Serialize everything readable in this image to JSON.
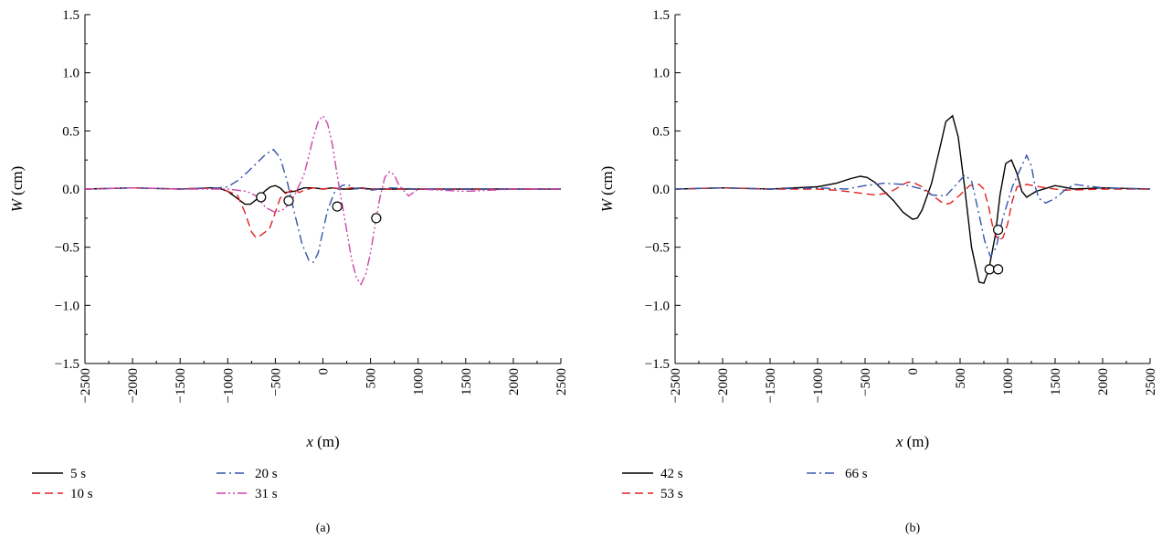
{
  "chart_data": [
    {
      "panel_label": "(a)",
      "type": "line",
      "xlabel_var": "x",
      "xlabel_unit": "(m)",
      "ylabel_var": "W",
      "ylabel_unit": "(cm)",
      "xlim": [
        -2500,
        2500
      ],
      "ylim": [
        -1.5,
        1.5
      ],
      "xticks": [
        -2500,
        -2000,
        -1500,
        -1000,
        -500,
        0,
        500,
        1000,
        1500,
        2000,
        2500
      ],
      "xtick_labels": [
        "−2500",
        "−2000",
        "−1500",
        "−1000",
        "−500",
        "0",
        "500",
        "1000",
        "1500",
        "2000",
        "2500"
      ],
      "yticks": [
        -1.5,
        -1.0,
        -0.5,
        0.0,
        0.5,
        1.0,
        1.5
      ],
      "ytick_labels": [
        "−1.5",
        "−1.0",
        "−0.5",
        "0.0",
        "0.5",
        "1.0",
        "1.5"
      ],
      "grid": false,
      "legend_position": "bottom",
      "series": [
        {
          "name": "5 s",
          "color": "#000000",
          "dash": "solid",
          "x": [
            -2500,
            -2000,
            -1500,
            -1200,
            -1100,
            -1000,
            -900,
            -820,
            -760,
            -700,
            -650,
            -600,
            -550,
            -500,
            -450,
            -400,
            -300,
            -200,
            -100,
            0,
            100,
            200,
            300,
            400,
            500,
            700,
            1000,
            1500,
            2000,
            2500
          ],
          "y": [
            0,
            0.01,
            0,
            0.01,
            0.01,
            -0.02,
            -0.08,
            -0.13,
            -0.13,
            -0.09,
            -0.05,
            -0.01,
            0.02,
            0.03,
            0.01,
            -0.03,
            -0.02,
            0.01,
            0.01,
            0,
            0.01,
            0,
            0,
            0.01,
            0,
            0,
            0,
            0,
            0,
            0
          ]
        },
        {
          "name": "10 s",
          "color": "#e02020",
          "dash": "dashed",
          "x": [
            -2500,
            -2000,
            -1500,
            -1100,
            -1000,
            -900,
            -820,
            -750,
            -700,
            -640,
            -560,
            -500,
            -450,
            -400,
            -350,
            -300,
            -250,
            -200,
            -100,
            0,
            100,
            200,
            300,
            500,
            1000,
            1500,
            2000,
            2500
          ],
          "y": [
            0,
            0.01,
            0,
            0.01,
            -0.02,
            -0.05,
            -0.2,
            -0.37,
            -0.42,
            -0.39,
            -0.34,
            -0.2,
            -0.08,
            -0.04,
            -0.02,
            0.0,
            -0.03,
            -0.01,
            0.01,
            0,
            0.01,
            0,
            0.01,
            0,
            0,
            0,
            0,
            0
          ]
        },
        {
          "name": "20 s",
          "color": "#3355aa",
          "dash": "dashdot",
          "x": [
            -2500,
            -2000,
            -1500,
            -1100,
            -1000,
            -900,
            -800,
            -700,
            -600,
            -520,
            -450,
            -380,
            -300,
            -220,
            -150,
            -100,
            -50,
            0,
            50,
            120,
            200,
            260,
            300,
            350,
            400,
            500,
            700,
            1000,
            1500,
            2000,
            2500
          ],
          "y": [
            0,
            0.01,
            0,
            0.01,
            0.02,
            0.07,
            0.14,
            0.22,
            0.3,
            0.34,
            0.27,
            0.08,
            -0.2,
            -0.47,
            -0.61,
            -0.63,
            -0.55,
            -0.36,
            -0.18,
            -0.03,
            0.03,
            0.04,
            0.02,
            0,
            0.01,
            -0.01,
            0.01,
            0,
            0,
            0,
            0
          ]
        },
        {
          "name": "31 s",
          "color": "#cc44aa",
          "dash": "dashdotdot",
          "x": [
            -2500,
            -2000,
            -1500,
            -1000,
            -800,
            -700,
            -600,
            -500,
            -400,
            -300,
            -200,
            -150,
            -100,
            -50,
            0,
            50,
            100,
            150,
            200,
            250,
            300,
            350,
            400,
            450,
            500,
            550,
            600,
            650,
            700,
            750,
            800,
            900,
            1000,
            1500,
            2000,
            2500
          ],
          "y": [
            0,
            0.01,
            0,
            0,
            -0.02,
            -0.06,
            -0.16,
            -0.2,
            -0.17,
            -0.06,
            0.12,
            0.28,
            0.45,
            0.58,
            0.63,
            0.56,
            0.38,
            0.12,
            -0.12,
            -0.36,
            -0.6,
            -0.76,
            -0.82,
            -0.73,
            -0.55,
            -0.3,
            -0.07,
            0.1,
            0.15,
            0.12,
            0.03,
            -0.06,
            0,
            -0.02,
            0,
            0
          ]
        }
      ],
      "markers": {
        "x": [
          -650,
          -360,
          150,
          560
        ],
        "y": [
          -0.07,
          -0.1,
          -0.15,
          -0.25
        ]
      },
      "legend_rows": [
        [
          "5 s",
          "20 s"
        ],
        [
          "10 s",
          "31 s"
        ]
      ]
    },
    {
      "panel_label": "(b)",
      "type": "line",
      "xlabel_var": "x",
      "xlabel_unit": "(m)",
      "ylabel_var": "W",
      "ylabel_unit": "(cm)",
      "xlim": [
        -2500,
        2500
      ],
      "ylim": [
        -1.5,
        1.5
      ],
      "xticks": [
        -2500,
        -2000,
        -1500,
        -1000,
        -500,
        0,
        500,
        1000,
        1500,
        2000,
        2500
      ],
      "xtick_labels": [
        "−2500",
        "−2000",
        "−1500",
        "−1000",
        "−500",
        "0",
        "500",
        "1000",
        "1500",
        "2000",
        "2500"
      ],
      "yticks": [
        -1.5,
        -1.0,
        -0.5,
        0.0,
        0.5,
        1.0,
        1.5
      ],
      "ytick_labels": [
        "−1.5",
        "−1.0",
        "−0.5",
        "0.0",
        "0.5",
        "1.0",
        "1.5"
      ],
      "grid": false,
      "legend_position": "bottom",
      "series": [
        {
          "name": "42 s",
          "color": "#000000",
          "dash": "solid",
          "x": [
            -2500,
            -2000,
            -1500,
            -1000,
            -800,
            -650,
            -550,
            -480,
            -400,
            -300,
            -200,
            -100,
            0,
            50,
            100,
            200,
            300,
            350,
            420,
            480,
            550,
            620,
            700,
            750,
            800,
            870,
            920,
            980,
            1040,
            1100,
            1150,
            1200,
            1300,
            1500,
            1700,
            2000,
            2500
          ],
          "y": [
            0,
            0.01,
            0,
            0.02,
            0.05,
            0.09,
            0.11,
            0.1,
            0.06,
            -0.02,
            -0.1,
            -0.2,
            -0.26,
            -0.25,
            -0.18,
            0.05,
            0.4,
            0.58,
            0.63,
            0.45,
            0.0,
            -0.5,
            -0.8,
            -0.81,
            -0.7,
            -0.4,
            -0.05,
            0.22,
            0.25,
            0.13,
            -0.02,
            -0.07,
            -0.02,
            0.03,
            0,
            0.01,
            0
          ]
        },
        {
          "name": "53 s",
          "color": "#e02020",
          "dash": "dashed",
          "x": [
            -2500,
            -2000,
            -1500,
            -1000,
            -800,
            -600,
            -400,
            -300,
            -200,
            -100,
            -50,
            0,
            100,
            200,
            300,
            350,
            400,
            500,
            600,
            700,
            750,
            800,
            850,
            900,
            950,
            1000,
            1050,
            1100,
            1200,
            1400,
            1600,
            2000,
            2500
          ],
          "y": [
            0,
            0.01,
            0,
            0,
            -0.01,
            -0.03,
            -0.05,
            -0.04,
            -0.01,
            0.04,
            0.06,
            0.06,
            0.02,
            -0.05,
            -0.11,
            -0.13,
            -0.12,
            -0.05,
            0.03,
            0.04,
            0.0,
            -0.15,
            -0.35,
            -0.44,
            -0.42,
            -0.3,
            -0.1,
            0.02,
            0.04,
            0.01,
            -0.01,
            0,
            0
          ]
        },
        {
          "name": "66 s",
          "color": "#3355aa",
          "dash": "dashdot",
          "x": [
            -2500,
            -2000,
            -1500,
            -1000,
            -700,
            -500,
            -300,
            -100,
            100,
            200,
            350,
            450,
            550,
            620,
            700,
            760,
            820,
            880,
            950,
            1050,
            1150,
            1200,
            1250,
            1290,
            1330,
            1400,
            1500,
            1600,
            1700,
            2000,
            2500
          ],
          "y": [
            0,
            0.01,
            0,
            0.01,
            0,
            0.03,
            0.05,
            0.04,
            0.0,
            -0.05,
            -0.06,
            0.03,
            0.12,
            0.07,
            -0.22,
            -0.45,
            -0.58,
            -0.5,
            -0.25,
            0.02,
            0.2,
            0.29,
            0.2,
            0.02,
            -0.08,
            -0.12,
            -0.08,
            -0.01,
            0.04,
            0.01,
            0
          ]
        }
      ],
      "markers": {
        "x": [
          810,
          900,
          900
        ],
        "y": [
          -0.69,
          -0.69,
          -0.35
        ]
      },
      "legend_rows": [
        [
          "42 s",
          "66 s"
        ],
        [
          "53 s",
          ""
        ]
      ]
    }
  ]
}
